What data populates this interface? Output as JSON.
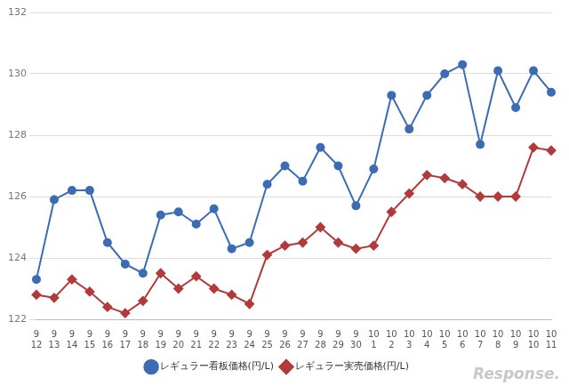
{
  "chart_data": {
    "type": "line",
    "categories": [
      [
        "9",
        "12"
      ],
      [
        "9",
        "13"
      ],
      [
        "9",
        "14"
      ],
      [
        "9",
        "15"
      ],
      [
        "9",
        "16"
      ],
      [
        "9",
        "17"
      ],
      [
        "9",
        "18"
      ],
      [
        "9",
        "19"
      ],
      [
        "9",
        "20"
      ],
      [
        "9",
        "21"
      ],
      [
        "9",
        "22"
      ],
      [
        "9",
        "23"
      ],
      [
        "9",
        "24"
      ],
      [
        "9",
        "25"
      ],
      [
        "9",
        "26"
      ],
      [
        "9",
        "27"
      ],
      [
        "9",
        "28"
      ],
      [
        "9",
        "29"
      ],
      [
        "9",
        "30"
      ],
      [
        "10",
        "1"
      ],
      [
        "10",
        "2"
      ],
      [
        "10",
        "3"
      ],
      [
        "10",
        "4"
      ],
      [
        "10",
        "5"
      ],
      [
        "10",
        "6"
      ],
      [
        "10",
        "7"
      ],
      [
        "10",
        "8"
      ],
      [
        "10",
        "9"
      ],
      [
        "10",
        "10"
      ],
      [
        "10",
        "11"
      ]
    ],
    "series": [
      {
        "name": "レギュラー看板価格(円/L)",
        "color": "#3b6cb4",
        "marker": "circle",
        "values": [
          123.3,
          125.9,
          126.2,
          126.2,
          124.5,
          123.8,
          123.5,
          125.4,
          125.5,
          125.1,
          125.6,
          124.3,
          124.5,
          126.4,
          127.0,
          126.5,
          127.6,
          127.0,
          125.7,
          126.9,
          129.3,
          128.2,
          129.3,
          130.0,
          130.3,
          127.7,
          130.1,
          128.9,
          130.1,
          129.4
        ]
      },
      {
        "name": "レギュラー実売価格(円/L)",
        "color": "#b23a3a",
        "marker": "diamond",
        "values": [
          122.8,
          122.7,
          123.3,
          122.9,
          122.4,
          122.2,
          122.6,
          123.5,
          123.0,
          123.4,
          123.0,
          122.8,
          122.5,
          124.1,
          124.4,
          124.5,
          125.0,
          124.5,
          124.3,
          124.4,
          125.5,
          126.1,
          126.7,
          126.6,
          126.4,
          126.0,
          126.0,
          126.0,
          127.6,
          127.5
        ]
      }
    ],
    "ylim": [
      122,
      132
    ],
    "yticks": [
      122,
      124,
      126,
      128,
      130,
      132
    ],
    "grid": true,
    "legend": "bottom",
    "annotations": [
      "Response."
    ]
  }
}
